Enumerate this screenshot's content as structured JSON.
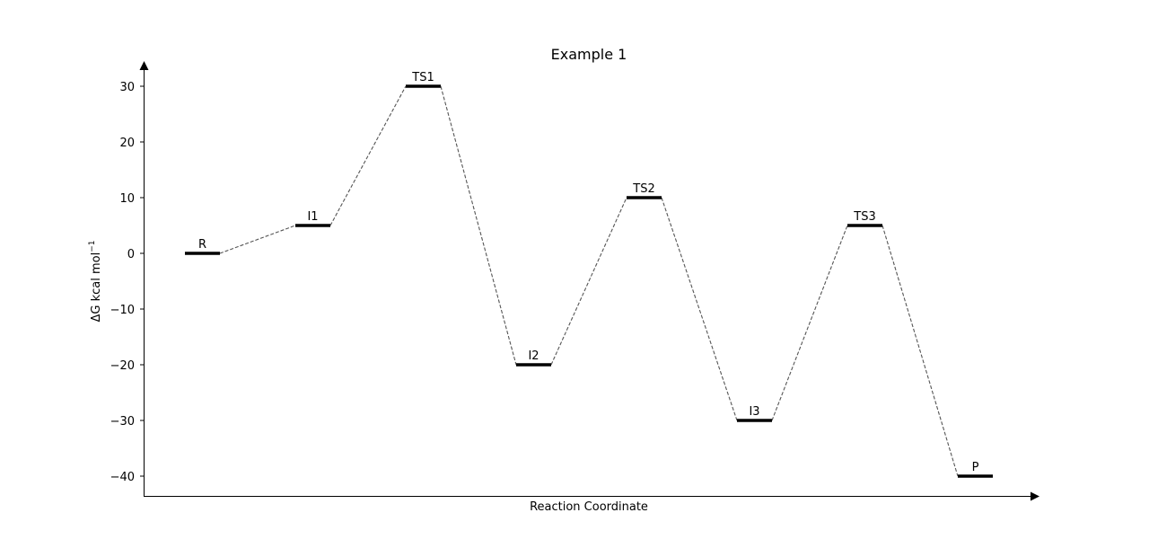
{
  "chart_data": {
    "type": "energy-profile",
    "title": "Example 1",
    "xlabel": "Reaction Coordinate",
    "ylabel": "ΔG kcal mol",
    "ylabel_superscript": "−1",
    "yticks": [
      30,
      20,
      10,
      0,
      -10,
      -20,
      -30,
      -40
    ],
    "ytick_labels": [
      "30",
      "20",
      "10",
      "0",
      "−10",
      "−20",
      "−30",
      "−40"
    ],
    "ylim": [
      -43.5,
      34
    ],
    "grid": false,
    "states": [
      {
        "label": "R",
        "value": 0
      },
      {
        "label": "I1",
        "value": 5
      },
      {
        "label": "TS1",
        "value": 30
      },
      {
        "label": "I2",
        "value": -20
      },
      {
        "label": "TS2",
        "value": 10
      },
      {
        "label": "I3",
        "value": -30
      },
      {
        "label": "TS3",
        "value": 5
      },
      {
        "label": "P",
        "value": -40
      }
    ],
    "level_color": "#000000",
    "connector_color": "#555555"
  }
}
